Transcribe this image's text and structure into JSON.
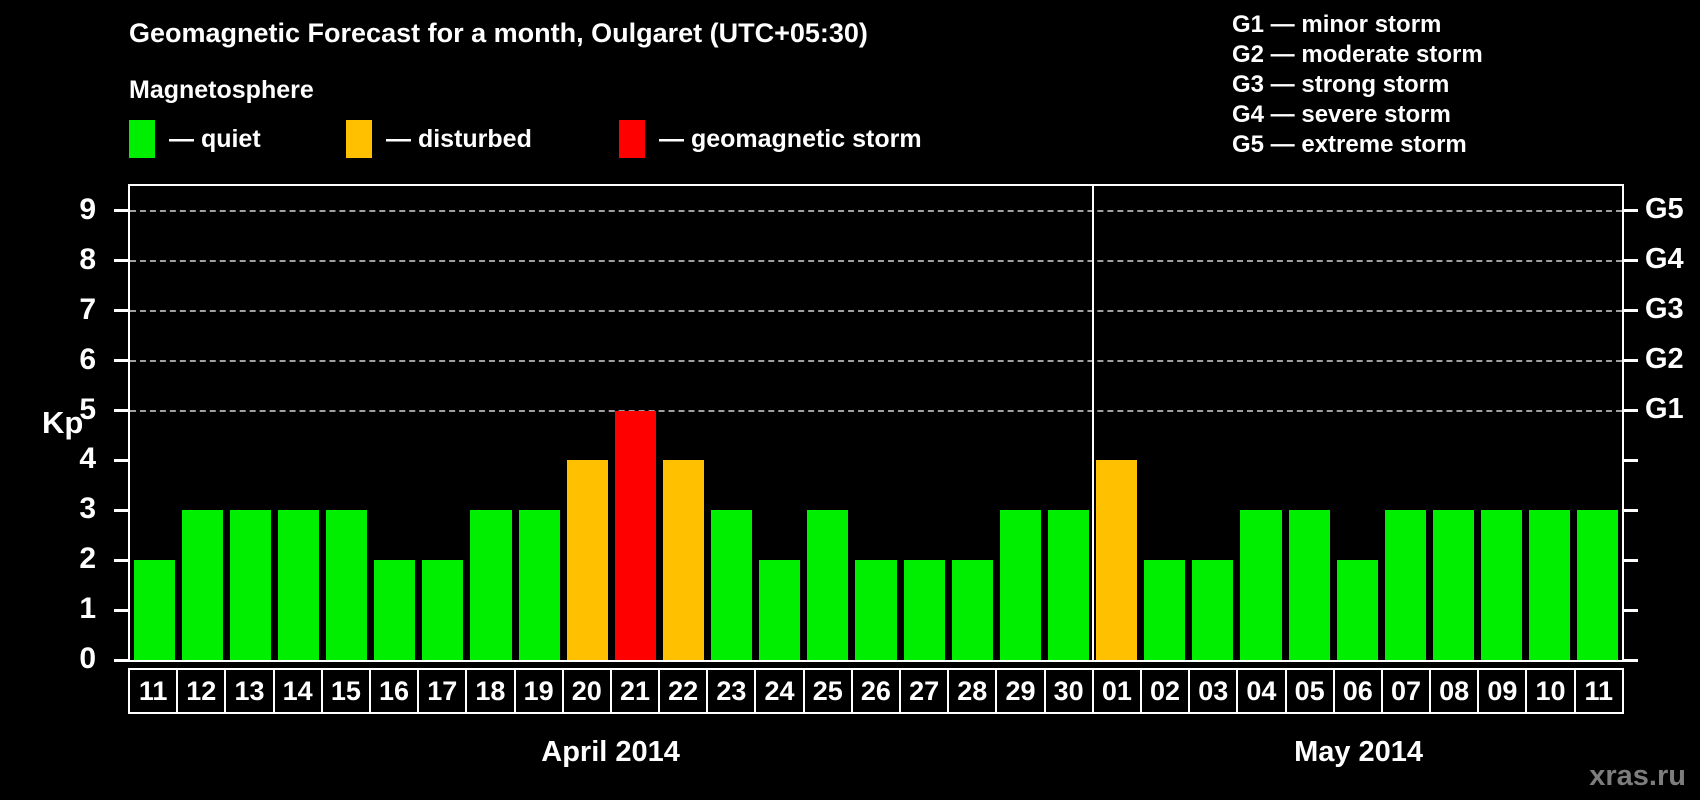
{
  "title": "Geomagnetic Forecast for a month, Oulgaret (UTC+05:30)",
  "legend": {
    "heading": "Magnetosphere",
    "items": [
      {
        "key": "quiet",
        "label": "— quiet",
        "color": "#00ee00"
      },
      {
        "key": "disturbed",
        "label": "— disturbed",
        "color": "#ffc000"
      },
      {
        "key": "storm",
        "label": "— geomagnetic storm",
        "color": "#ff0000"
      }
    ]
  },
  "storm_scale_legend": [
    "G1 — minor storm",
    "G2 — moderate storm",
    "G3 — strong storm",
    "G4 — severe storm",
    "G5 — extreme storm"
  ],
  "kp_axis_label": "Kp",
  "watermark": "xras.ru",
  "chart_data": {
    "type": "bar",
    "title": "Geomagnetic Forecast for a month, Oulgaret (UTC+05:30)",
    "xlabel": "",
    "ylabel": "Kp",
    "ylim": [
      0,
      9.5
    ],
    "yticks": [
      0,
      1,
      2,
      3,
      4,
      5,
      6,
      7,
      8,
      9
    ],
    "gridlines_at": [
      5,
      6,
      7,
      8,
      9
    ],
    "grid_style": "dashed",
    "legend_position": "top",
    "right_axis_labels": [
      {
        "level": 5,
        "label": "G1"
      },
      {
        "level": 6,
        "label": "G2"
      },
      {
        "level": 7,
        "label": "G3"
      },
      {
        "level": 8,
        "label": "G4"
      },
      {
        "level": 9,
        "label": "G5"
      }
    ],
    "months": [
      {
        "label": "April 2014",
        "days": 20
      },
      {
        "label": "May 2014",
        "days": 11
      }
    ],
    "categories": [
      "11",
      "12",
      "13",
      "14",
      "15",
      "16",
      "17",
      "18",
      "19",
      "20",
      "21",
      "22",
      "23",
      "24",
      "25",
      "26",
      "27",
      "28",
      "29",
      "30",
      "01",
      "02",
      "03",
      "04",
      "05",
      "06",
      "07",
      "08",
      "09",
      "10",
      "11"
    ],
    "values": [
      2,
      3,
      3,
      3,
      3,
      2,
      2,
      3,
      3,
      4,
      5,
      4,
      3,
      2,
      3,
      2,
      2,
      2,
      3,
      3,
      4,
      2,
      2,
      3,
      3,
      2,
      3,
      3,
      3,
      3,
      3
    ],
    "states": [
      "quiet",
      "quiet",
      "quiet",
      "quiet",
      "quiet",
      "quiet",
      "quiet",
      "quiet",
      "quiet",
      "disturbed",
      "storm",
      "disturbed",
      "quiet",
      "quiet",
      "quiet",
      "quiet",
      "quiet",
      "quiet",
      "quiet",
      "quiet",
      "disturbed",
      "quiet",
      "quiet",
      "quiet",
      "quiet",
      "quiet",
      "quiet",
      "quiet",
      "quiet",
      "quiet",
      "quiet"
    ],
    "colors": {
      "quiet": "#00ee00",
      "disturbed": "#ffc000",
      "storm": "#ff0000"
    }
  }
}
